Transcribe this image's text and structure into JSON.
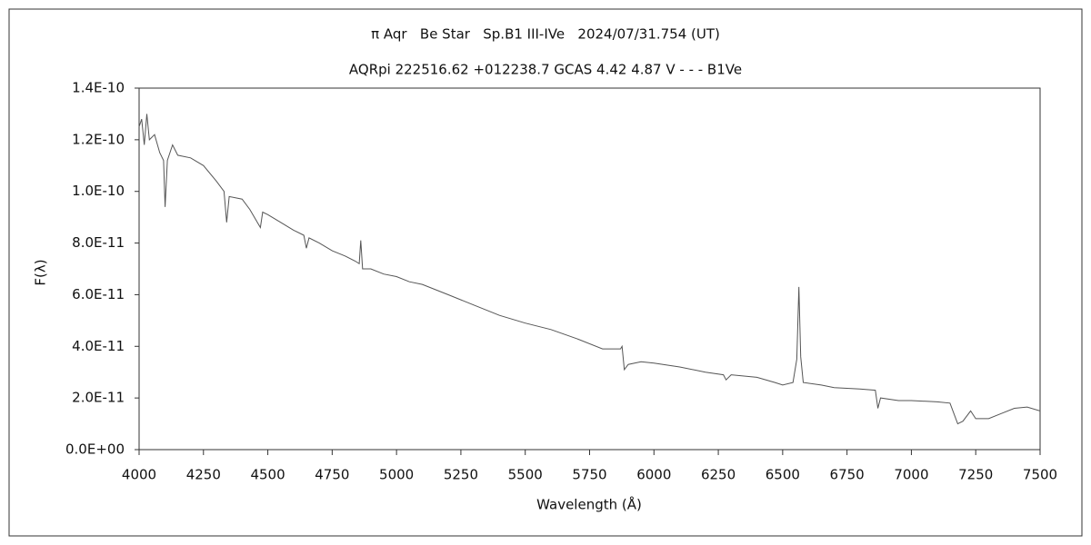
{
  "chart_data": {
    "type": "line",
    "title": "π Aqr   Be Star   Sp.B1 III-IVe   2024/07/31.754 (UT)",
    "subtitle": "AQRpi 222516.62 +012238.7 GCAS 4.42 4.87 V - - - B1Ve",
    "x_label": "Wavelength (Å)",
    "y_label": "F(λ)",
    "color": "#555555",
    "x": [
      4000,
      4010,
      4020,
      4030,
      4040,
      4060,
      4080,
      4095,
      4101,
      4110,
      4130,
      4150,
      4200,
      4250,
      4300,
      4330,
      4340,
      4350,
      4400,
      4430,
      4471,
      4480,
      4500,
      4550,
      4600,
      4640,
      4650,
      4660,
      4700,
      4750,
      4800,
      4840,
      4855,
      4861,
      4868,
      4900,
      4950,
      5000,
      5050,
      5100,
      5200,
      5300,
      5400,
      5500,
      5600,
      5700,
      5800,
      5870,
      5876,
      5885,
      5900,
      5950,
      6000,
      6100,
      6200,
      6270,
      6280,
      6300,
      6400,
      6470,
      6500,
      6540,
      6555,
      6563,
      6570,
      6580,
      6650,
      6700,
      6800,
      6860,
      6870,
      6880,
      6950,
      7000,
      7100,
      7150,
      7180,
      7200,
      7230,
      7250,
      7300,
      7350,
      7400,
      7450,
      7500
    ],
    "values": [
      1.25e-10,
      1.28e-10,
      1.18e-10,
      1.3e-10,
      1.2e-10,
      1.22e-10,
      1.15e-10,
      1.12e-10,
      9.4e-11,
      1.12e-10,
      1.18e-10,
      1.14e-10,
      1.13e-10,
      1.1e-10,
      1.04e-10,
      1e-10,
      8.8e-11,
      9.8e-11,
      9.7e-11,
      9.3e-11,
      8.6e-11,
      9.2e-11,
      9.1e-11,
      8.8e-11,
      8.5e-11,
      8.3e-11,
      7.8e-11,
      8.2e-11,
      8e-11,
      7.7e-11,
      7.5e-11,
      7.3e-11,
      7.2e-11,
      8.1e-11,
      7e-11,
      7e-11,
      6.8e-11,
      6.7e-11,
      6.5e-11,
      6.4e-11,
      6e-11,
      5.6e-11,
      5.2e-11,
      4.9e-11,
      4.65e-11,
      4.3e-11,
      3.9e-11,
      3.9e-11,
      4e-11,
      3.1e-11,
      3.3e-11,
      3.4e-11,
      3.35e-11,
      3.2e-11,
      3e-11,
      2.9e-11,
      2.7e-11,
      2.9e-11,
      2.8e-11,
      2.6e-11,
      2.5e-11,
      2.6e-11,
      3.5e-11,
      6.3e-11,
      3.6e-11,
      2.6e-11,
      2.5e-11,
      2.4e-11,
      2.35e-11,
      2.3e-11,
      1.6e-11,
      2e-11,
      1.9e-11,
      1.9e-11,
      1.85e-11,
      1.8e-11,
      1e-11,
      1.1e-11,
      1.5e-11,
      1.2e-11,
      1.2e-11,
      1.4e-11,
      1.6e-11,
      1.65e-11,
      1.5e-11
    ],
    "xlim": [
      4000,
      7500
    ],
    "xticks": [
      4000,
      4250,
      4500,
      4750,
      5000,
      5250,
      5500,
      5750,
      6000,
      6250,
      6500,
      6750,
      7000,
      7250,
      7500
    ],
    "ylim": [
      0,
      1.4e-10
    ],
    "yticks": [
      {
        "value": 0,
        "label": "0.0E+00"
      },
      {
        "value": 2e-11,
        "label": "2.0E-11"
      },
      {
        "value": 4e-11,
        "label": "4.0E-11"
      },
      {
        "value": 6e-11,
        "label": "6.0E-11"
      },
      {
        "value": 8e-11,
        "label": "8.0E-11"
      },
      {
        "value": 1e-10,
        "label": "1.0E-10"
      },
      {
        "value": 1.2e-10,
        "label": "1.2E-10"
      },
      {
        "value": 1.4e-10,
        "label": "1.4E-10"
      }
    ],
    "grid": false
  }
}
